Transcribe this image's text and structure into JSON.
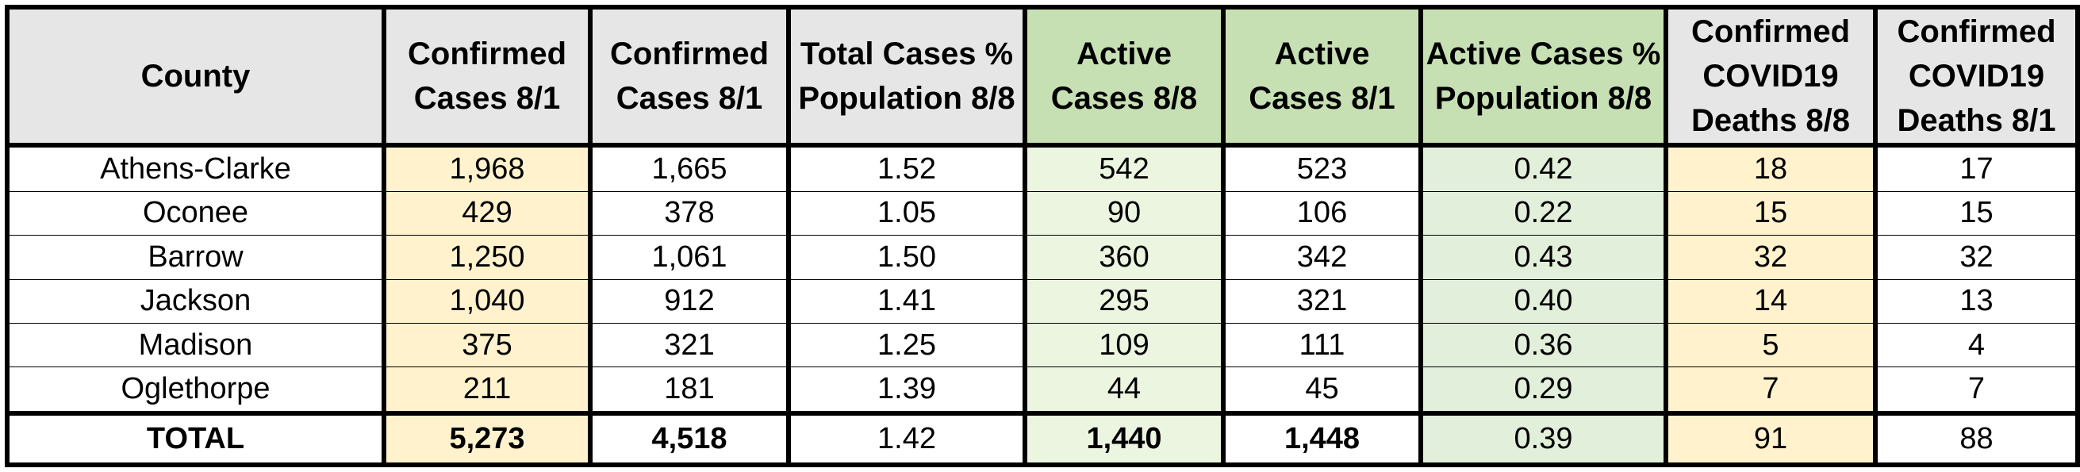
{
  "columns": [
    {
      "key": "county",
      "label": "County",
      "style": "gray"
    },
    {
      "key": "c1",
      "label": "Confirmed Cases 8/1",
      "style": "gray"
    },
    {
      "key": "c2",
      "label": "Confirmed Cases 8/1",
      "style": "gray"
    },
    {
      "key": "c3",
      "label": "Total Cases % Population 8/8",
      "style": "gray"
    },
    {
      "key": "c4",
      "label": "Active Cases 8/8",
      "style": "green"
    },
    {
      "key": "c5",
      "label": "Active Cases 8/1",
      "style": "green"
    },
    {
      "key": "c6",
      "label": "Active Cases % Population 8/8",
      "style": "green"
    },
    {
      "key": "c7",
      "label": "Confirmed COVID19 Deaths 8/8",
      "style": "gray"
    },
    {
      "key": "c8",
      "label": "Confirmed COVID19 Deaths 8/1",
      "style": "gray"
    }
  ],
  "rows": [
    [
      "Athens-Clarke",
      "1,968",
      "1,665",
      "1.52",
      "542",
      "523",
      "0.42",
      "18",
      "17"
    ],
    [
      "Oconee",
      "429",
      "378",
      "1.05",
      "90",
      "106",
      "0.22",
      "15",
      "15"
    ],
    [
      "Barrow",
      "1,250",
      "1,061",
      "1.50",
      "360",
      "342",
      "0.43",
      "32",
      "32"
    ],
    [
      "Jackson",
      "1,040",
      "912",
      "1.41",
      "295",
      "321",
      "0.40",
      "14",
      "13"
    ],
    [
      "Madison",
      "375",
      "321",
      "1.25",
      "109",
      "111",
      "0.36",
      "5",
      "4"
    ],
    [
      "Oglethorpe",
      "211",
      "181",
      "1.39",
      "44",
      "45",
      "0.29",
      "7",
      "7"
    ]
  ],
  "total": [
    "TOTAL",
    "5,273",
    "4,518",
    "1.42",
    "1,440",
    "1,448",
    "0.39",
    "91",
    "88"
  ],
  "colors": {
    "header_gray": "#e6e6e6",
    "header_green": "#c6e0b4",
    "confirmed_highlight": "#fff2cc",
    "active_highlight": "#ebf5e0",
    "active_pct_highlight": "#e2efda",
    "border": "#000000"
  },
  "chart_data": {
    "type": "table",
    "columns": [
      "County",
      "Confirmed Cases 8/1",
      "Confirmed Cases 8/1",
      "Total Cases % Population 8/8",
      "Active Cases 8/8",
      "Active Cases 8/1",
      "Active Cases % Population 8/8",
      "Confirmed COVID19 Deaths 8/8",
      "Confirmed COVID19 Deaths 8/1"
    ],
    "rows": [
      [
        "Athens-Clarke",
        1968,
        1665,
        1.52,
        542,
        523,
        0.42,
        18,
        17
      ],
      [
        "Oconee",
        429,
        378,
        1.05,
        90,
        106,
        0.22,
        15,
        15
      ],
      [
        "Barrow",
        1250,
        1061,
        1.5,
        360,
        342,
        0.43,
        32,
        32
      ],
      [
        "Jackson",
        1040,
        912,
        1.41,
        295,
        321,
        0.4,
        14,
        13
      ],
      [
        "Madison",
        375,
        321,
        1.25,
        109,
        111,
        0.36,
        5,
        4
      ],
      [
        "Oglethorpe",
        211,
        181,
        1.39,
        44,
        45,
        0.29,
        7,
        7
      ],
      [
        "TOTAL",
        5273,
        4518,
        1.42,
        1440,
        1448,
        0.39,
        91,
        88
      ]
    ]
  }
}
